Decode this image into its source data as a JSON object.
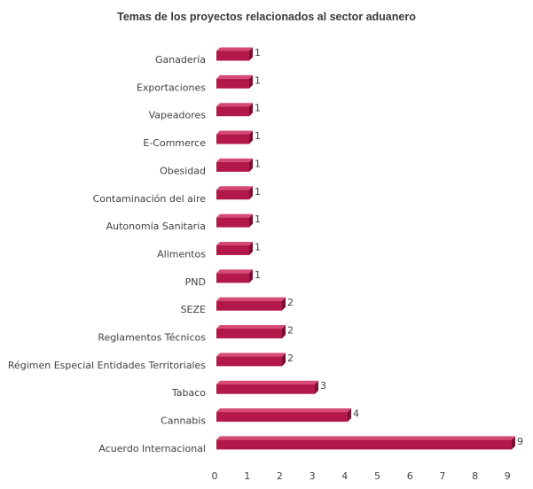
{
  "chart_data": {
    "type": "bar",
    "orientation": "horizontal",
    "title": "Temas de los proyectos relacionados al sector aduanero",
    "categories": [
      "Ganadería",
      "Exportaciones",
      "Vapeadores",
      "E-Commerce",
      "Obesidad",
      "Contaminación del aire",
      "Autonomía Sanitaria",
      "Alimentos",
      "PND",
      "SEZE",
      "Reglamentos Técnicos",
      "Régimen Especial Entidades Territoriales",
      "Tabaco",
      "Cannabis",
      "Acuerdo Internacional"
    ],
    "values": [
      1,
      1,
      1,
      1,
      1,
      1,
      1,
      1,
      1,
      2,
      2,
      2,
      3,
      4,
      9
    ],
    "xticks": [
      "0",
      "1",
      "2",
      "3",
      "4",
      "5",
      "6",
      "7",
      "8",
      "9"
    ],
    "xlim": [
      0,
      9
    ],
    "grid": false,
    "legend": "none",
    "bar_color": "#b3184a",
    "bar_top_color": "#d64a74",
    "bar_side_color": "#7a0f33"
  }
}
